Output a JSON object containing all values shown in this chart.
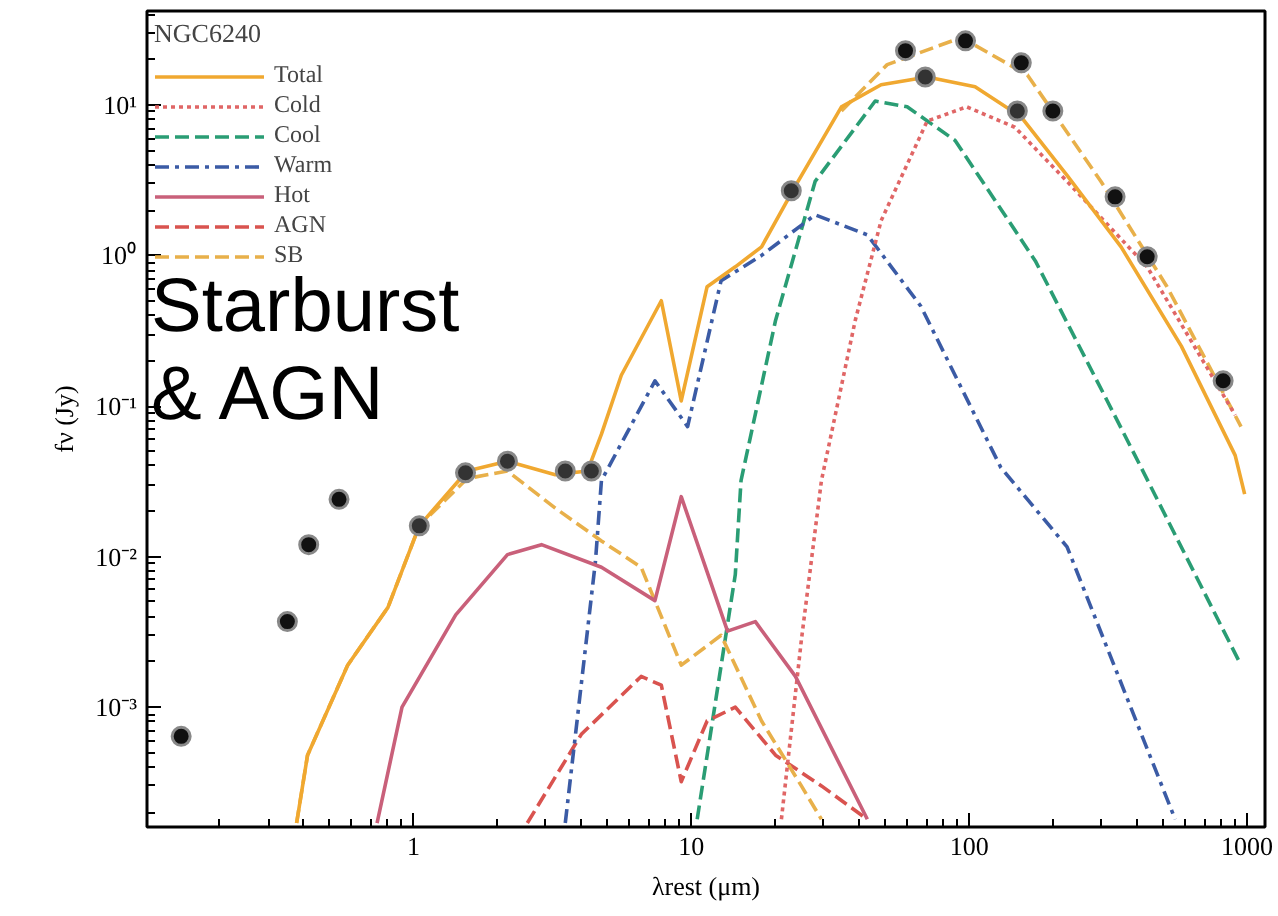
{
  "chart_data": {
    "type": "line",
    "xlabel": "λrest (μm)",
    "ylabel": "fν (Jy)",
    "legend_title": "NGC6240",
    "annotations": [
      "Starburst\n& AGN"
    ],
    "log": "xy",
    "grid": false,
    "legend": "top left",
    "xlim": [
      0.11,
      1160
    ],
    "ylim": [
      0.00016,
      42
    ],
    "xticks": [
      1,
      10,
      100,
      1000
    ],
    "yticks": [
      {
        "value": 0.001,
        "label": "10⁻³"
      },
      {
        "value": 0.01,
        "label": "10⁻²"
      },
      {
        "value": 0.1,
        "label": "10⁻¹"
      },
      {
        "value": 1,
        "label": "10⁰"
      },
      {
        "value": 10,
        "label": "10¹"
      }
    ],
    "series": [
      {
        "name": "Total",
        "color": "#f0a830",
        "line_style": "solid",
        "x": [
          0.38,
          0.416,
          0.58,
          0.81,
          1.05,
          1.56,
          2.18,
          3.24,
          4.23,
          4.75,
          5.6,
          7.8,
          9.2,
          11.4,
          14.4,
          17.9,
          23.7,
          34.7,
          48.2,
          70.6,
          105,
          154,
          225,
          352,
          580,
          906,
          980
        ],
        "values": [
          0.00017,
          0.00048,
          0.0019,
          0.0046,
          0.016,
          0.037,
          0.043,
          0.035,
          0.037,
          0.065,
          0.16,
          0.5,
          0.108,
          0.62,
          0.84,
          1.14,
          2.9,
          9.7,
          13.6,
          15.3,
          13.2,
          8.3,
          3.4,
          1.14,
          0.25,
          0.047,
          0.026
        ]
      },
      {
        "name": "Cold",
        "color": "#e06666",
        "line_style": "dotted",
        "x": [
          21.1,
          24.9,
          29.4,
          38.9,
          48.2,
          70.6,
          98,
          146,
          225,
          437,
          906
        ],
        "values": [
          0.00018,
          0.0028,
          0.032,
          0.37,
          1.7,
          7.8,
          9.7,
          7.1,
          3.1,
          0.84,
          0.087
        ]
      },
      {
        "name": "Cool",
        "color": "#2a9d74",
        "line_style": "dashed",
        "x": [
          10.5,
          14.4,
          15.1,
          20.1,
          27.9,
          45.9,
          59.8,
          89,
          173,
          314,
          395,
          951
        ],
        "values": [
          0.00018,
          0.0076,
          0.032,
          0.37,
          3.1,
          10.6,
          9.7,
          5.8,
          0.92,
          0.108,
          0.047,
          0.0019
        ]
      },
      {
        "name": "Warm",
        "color": "#3b5ba5",
        "line_style": "dashdot",
        "x": [
          3.52,
          4.52,
          4.75,
          7.4,
          9.7,
          12.8,
          17.9,
          27.9,
          43,
          67,
          130,
          225,
          551
        ],
        "values": [
          0.00017,
          0.0093,
          0.032,
          0.147,
          0.073,
          0.68,
          1.0,
          1.86,
          1.37,
          0.46,
          0.039,
          0.0116,
          0.00018
        ]
      },
      {
        "name": "Hot",
        "color": "#c9607a",
        "line_style": "solid",
        "x": [
          0.74,
          0.91,
          1.42,
          2.18,
          2.89,
          4.75,
          7.4,
          9.2,
          13.5,
          17.0,
          23.7,
          43
        ],
        "values": [
          0.00017,
          0.001,
          0.0041,
          0.0103,
          0.012,
          0.0085,
          0.0051,
          0.025,
          0.0032,
          0.0037,
          0.0016,
          0.00018
        ]
      },
      {
        "name": "AGN",
        "color": "#d9534f",
        "line_style": "dashed",
        "x": [
          2.57,
          4.02,
          6.6,
          7.8,
          9.2,
          11.4,
          14.4,
          20.1,
          29.4,
          43
        ],
        "values": [
          0.00017,
          0.00066,
          0.0016,
          0.0014,
          0.00032,
          0.00081,
          0.001,
          0.00048,
          0.0003,
          0.00018
        ]
      },
      {
        "name": "SB",
        "color": "#e8b04a",
        "line_style": "dashed",
        "x": [
          0.38,
          0.416,
          0.58,
          0.81,
          1.05,
          1.56,
          2.18,
          3.24,
          4.75,
          6.6,
          9.2,
          12.8,
          17.9,
          24.9,
          29.4,
          32,
          34.7,
          50.7,
          93.6,
          162,
          298,
          515,
          951
        ],
        "values": [
          0.00017,
          0.00048,
          0.0019,
          0.0046,
          0.016,
          0.033,
          0.037,
          0.021,
          0.0127,
          0.0085,
          0.0019,
          0.003,
          0.00081,
          0.0003,
          0.00018,
          null,
          9.1,
          18.5,
          28,
          15.8,
          3.1,
          0.62,
          0.073
        ]
      },
      {
        "type": "scatter",
        "color": "#111111",
        "marker": "circle",
        "x": [
          0.146,
          0.352,
          0.42,
          0.54,
          59,
          97,
          154,
          200,
          335,
          437,
          820
        ],
        "values": [
          0.00064,
          0.0037,
          0.012,
          0.024,
          22.9,
          26.6,
          19,
          9.1,
          2.45,
          0.98,
          0.147
        ]
      },
      {
        "type": "scatter",
        "color": "#333333",
        "marker": "circle",
        "x": [
          1.05,
          1.54,
          2.18,
          3.52,
          4.37,
          22.9,
          69.5,
          149
        ],
        "values": [
          0.016,
          0.036,
          0.043,
          0.037,
          0.037,
          2.69,
          15.3,
          9.1
        ]
      }
    ]
  }
}
